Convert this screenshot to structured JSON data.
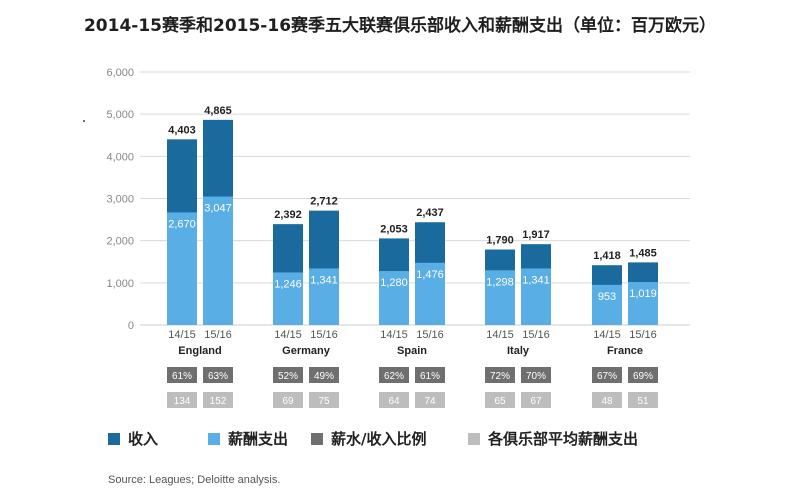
{
  "chart_data": {
    "type": "bar",
    "title": "2014-15赛季和2015-16赛季五大联赛俱乐部收入和薪酬支出（单位：百万欧元）",
    "ylim": [
      0,
      6000
    ],
    "yticks": [
      "0",
      "1,000",
      "2,000",
      "3,000",
      "4,000",
      "5,000",
      "6,000"
    ],
    "ytick_values": [
      0,
      1000,
      2000,
      3000,
      4000,
      5000,
      6000
    ],
    "groups": [
      "England",
      "Germany",
      "Spain",
      "Italy",
      "France"
    ],
    "seasons": [
      "14/15",
      "15/16"
    ],
    "series": [
      {
        "name": "收入",
        "values": [
          [
            4403,
            4865
          ],
          [
            2392,
            2712
          ],
          [
            2053,
            2437
          ],
          [
            1790,
            1917
          ],
          [
            1418,
            1485
          ]
        ],
        "labels": [
          [
            "4,403",
            "4,865"
          ],
          [
            "2,392",
            "2,712"
          ],
          [
            "2,053",
            "2,437"
          ],
          [
            "1,790",
            "1,917"
          ],
          [
            "1,418",
            "1,485"
          ]
        ]
      },
      {
        "name": "薪酬支出",
        "values": [
          [
            2670,
            3047
          ],
          [
            1246,
            1341
          ],
          [
            1280,
            1476
          ],
          [
            1298,
            1341
          ],
          [
            953,
            1019
          ]
        ],
        "labels": [
          [
            "2,670",
            "3,047"
          ],
          [
            "1,246",
            "1,341"
          ],
          [
            "1,280",
            "1,476"
          ],
          [
            "1,298",
            "1,341"
          ],
          [
            "953",
            "1,019"
          ]
        ]
      },
      {
        "name": "薪水/收入比例",
        "labels": [
          [
            "61%",
            "63%"
          ],
          [
            "52%",
            "49%"
          ],
          [
            "62%",
            "61%"
          ],
          [
            "72%",
            "70%"
          ],
          [
            "67%",
            "69%"
          ]
        ]
      },
      {
        "name": "各俱乐部平均薪酬支出",
        "labels": [
          [
            "134",
            "152"
          ],
          [
            "69",
            "75"
          ],
          [
            "64",
            "74"
          ],
          [
            "65",
            "67"
          ],
          [
            "48",
            "51"
          ]
        ]
      }
    ],
    "legend": [
      "收入",
      "薪酬支出",
      "薪水/收入比例",
      "各俱乐部平均薪酬支出"
    ],
    "colors": {
      "revenue": "#1a6a9e",
      "wages": "#5aaee6",
      "ratio_box": "#6f6f6f",
      "avg_box": "#bdbdbd",
      "grid": "#d9d9d9",
      "axis_text": "#888888"
    },
    "source": "Source: Leagues; Deloitte analysis."
  }
}
